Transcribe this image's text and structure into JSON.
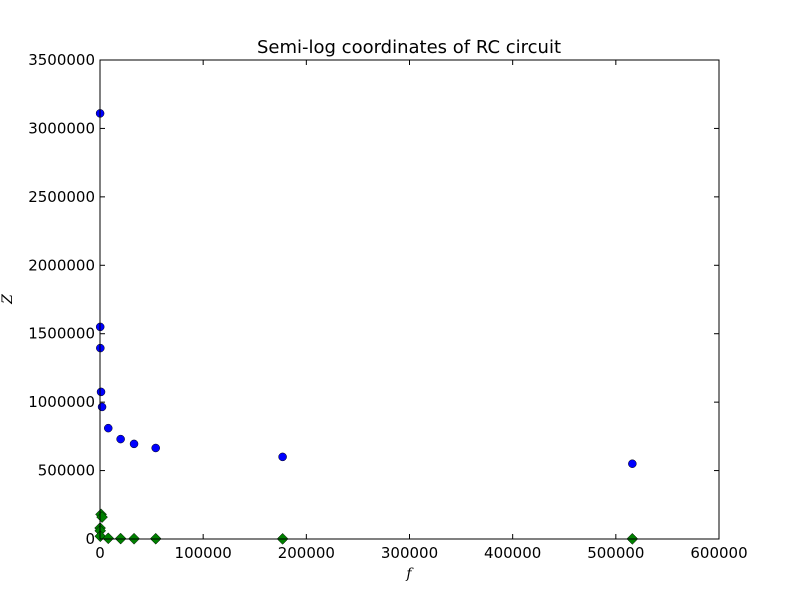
{
  "chart_data": {
    "type": "scatter",
    "title": "Semi-log coordinates of RC circuit",
    "xlabel": "f",
    "ylabel": "Z",
    "xlim": [
      0,
      600000
    ],
    "ylim": [
      0,
      3500000
    ],
    "x_ticks": [
      0,
      100000,
      200000,
      300000,
      400000,
      500000,
      600000
    ],
    "y_ticks": [
      0,
      500000,
      1000000,
      1500000,
      2000000,
      2500000,
      3000000,
      3500000
    ],
    "x_tick_labels": [
      "0",
      "100000",
      "200000",
      "300000",
      "400000",
      "500000",
      "600000"
    ],
    "y_tick_labels": [
      "0",
      "500000",
      "1000000",
      "1500000",
      "2000000",
      "2500000",
      "3000000",
      "3500000"
    ],
    "grid": false,
    "series": [
      {
        "marker": "circle",
        "color": "#0000ff",
        "points": [
          [
            100,
            3110000
          ],
          [
            200,
            1550000
          ],
          [
            300,
            1395000
          ],
          [
            1000,
            1075000
          ],
          [
            2000,
            965000
          ],
          [
            8000,
            810000
          ],
          [
            20000,
            730000
          ],
          [
            33000,
            695000
          ],
          [
            54000,
            665000
          ],
          [
            177000,
            600000
          ],
          [
            516000,
            550000
          ]
        ]
      },
      {
        "marker": "diamond",
        "color": "#008000",
        "points": [
          [
            100,
            80000
          ],
          [
            200,
            60000
          ],
          [
            300,
            20000
          ],
          [
            1000,
            180000
          ],
          [
            2000,
            160000
          ],
          [
            8000,
            5000
          ],
          [
            20000,
            3000
          ],
          [
            33000,
            2000
          ],
          [
            54000,
            2000
          ],
          [
            177000,
            1000
          ],
          [
            516000,
            1000
          ]
        ]
      }
    ]
  }
}
